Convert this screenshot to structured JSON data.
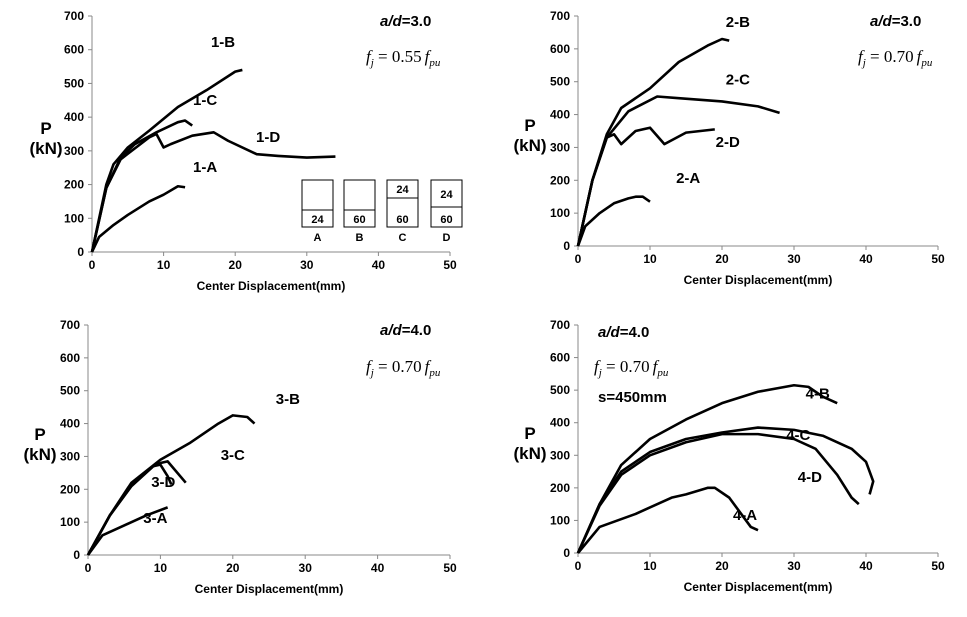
{
  "chart_data": [
    {
      "type": "line",
      "xlabel": "Center Displacement(mm)",
      "ylabel": [
        "P",
        "(kN)"
      ],
      "xlim": [
        0,
        50
      ],
      "ylim": [
        0,
        700
      ],
      "xticks": [
        0,
        10,
        20,
        30,
        40,
        50
      ],
      "yticks": [
        0,
        100,
        200,
        300,
        400,
        500,
        600,
        700
      ],
      "ratio": [
        "a/d",
        "=3.0"
      ],
      "formula": [
        "f",
        "j",
        " = 0.55",
        "f",
        "pu"
      ],
      "sections": [
        {
          "label": "A",
          "layers": [
            "24"
          ]
        },
        {
          "label": "B",
          "layers": [
            "60"
          ]
        },
        {
          "label": "C",
          "layers": [
            "24",
            "60"
          ]
        },
        {
          "label": "D",
          "layers": [
            "24",
            "60"
          ]
        }
      ],
      "series": [
        {
          "name": "1-A",
          "color": "#000000",
          "x": [
            0,
            1,
            3,
            5,
            8,
            10,
            12,
            13
          ],
          "values": [
            0,
            45,
            80,
            110,
            150,
            170,
            195,
            192
          ]
        },
        {
          "name": "1-B",
          "color": "#000000",
          "x": [
            0,
            1,
            2,
            3,
            5,
            8,
            12,
            16,
            20,
            21
          ],
          "values": [
            0,
            100,
            200,
            260,
            310,
            360,
            430,
            480,
            535,
            540
          ]
        },
        {
          "name": "1-C",
          "color": "#000000",
          "x": [
            0,
            2,
            4,
            6,
            9,
            12,
            13,
            14
          ],
          "values": [
            0,
            190,
            280,
            320,
            355,
            385,
            390,
            375
          ]
        },
        {
          "name": "1-D",
          "color": "#000000",
          "x": [
            0,
            2,
            4,
            8,
            9,
            10,
            11,
            14,
            17,
            19,
            23,
            26,
            30,
            34
          ],
          "values": [
            0,
            190,
            275,
            340,
            350,
            310,
            320,
            345,
            355,
            330,
            290,
            285,
            280,
            283
          ]
        }
      ]
    },
    {
      "type": "line",
      "xlabel": "Center Displacement(mm)",
      "ylabel": [
        "P",
        "(kN)"
      ],
      "xlim": [
        0,
        50
      ],
      "ylim": [
        0,
        700
      ],
      "xticks": [
        0,
        10,
        20,
        30,
        40,
        50
      ],
      "yticks": [
        0,
        100,
        200,
        300,
        400,
        500,
        600,
        700
      ],
      "ratio": [
        "a/d",
        "=3.0"
      ],
      "formula": [
        "f",
        "j",
        " = 0.70",
        "f",
        "pu"
      ],
      "series": [
        {
          "name": "2-A",
          "color": "#000000",
          "x": [
            0,
            1,
            3,
            5,
            7,
            8,
            9,
            10
          ],
          "values": [
            0,
            60,
            100,
            130,
            145,
            150,
            150,
            135
          ]
        },
        {
          "name": "2-B",
          "color": "#000000",
          "x": [
            0,
            2,
            4,
            6,
            10,
            14,
            18,
            20,
            21
          ],
          "values": [
            0,
            200,
            340,
            420,
            480,
            560,
            610,
            630,
            625
          ]
        },
        {
          "name": "2-C",
          "color": "#000000",
          "x": [
            0,
            2,
            4,
            7,
            11,
            14,
            20,
            25,
            28
          ],
          "values": [
            0,
            200,
            330,
            410,
            455,
            450,
            440,
            425,
            405
          ]
        },
        {
          "name": "2-D",
          "color": "#000000",
          "x": [
            0,
            2,
            4,
            5,
            6,
            8,
            10,
            12,
            15,
            19
          ],
          "values": [
            0,
            200,
            330,
            340,
            310,
            350,
            360,
            310,
            345,
            355
          ]
        }
      ]
    },
    {
      "type": "line",
      "xlabel": "Center Displacement(mm)",
      "ylabel": [
        "P",
        "(kN)"
      ],
      "xlim": [
        0,
        50
      ],
      "ylim": [
        0,
        700
      ],
      "xticks": [
        0,
        10,
        20,
        30,
        40,
        50
      ],
      "yticks": [
        0,
        100,
        200,
        300,
        400,
        500,
        600,
        700
      ],
      "ratio": [
        "a/d",
        "=4.0"
      ],
      "formula": [
        "f",
        "j",
        " = 0.70",
        "f",
        "pu"
      ],
      "series": [
        {
          "name": "3-A",
          "color": "#000000",
          "x": [
            0,
            2,
            5,
            8,
            11
          ],
          "values": [
            0,
            60,
            90,
            120,
            145
          ]
        },
        {
          "name": "3-B",
          "color": "#000000",
          "x": [
            0,
            3,
            6,
            10,
            14,
            18,
            20,
            22,
            23
          ],
          "values": [
            0,
            120,
            220,
            290,
            340,
            400,
            425,
            420,
            400
          ]
        },
        {
          "name": "3-C",
          "color": "#000000",
          "x": [
            0,
            3,
            6,
            9,
            10,
            11,
            13.5
          ],
          "values": [
            0,
            120,
            210,
            270,
            280,
            285,
            220
          ]
        },
        {
          "name": "3-D",
          "color": "#000000",
          "x": [
            0,
            3,
            6,
            9,
            10,
            11,
            11.5
          ],
          "values": [
            0,
            120,
            210,
            270,
            275,
            240,
            215
          ]
        }
      ]
    },
    {
      "type": "line",
      "xlabel": "Center Displacement(mm)",
      "ylabel": [
        "P",
        "(kN)"
      ],
      "xlim": [
        0,
        50
      ],
      "ylim": [
        0,
        700
      ],
      "xticks": [
        0,
        10,
        20,
        30,
        40,
        50
      ],
      "yticks": [
        0,
        100,
        200,
        300,
        400,
        500,
        600,
        700
      ],
      "ratio": [
        "a/d",
        "=4.0"
      ],
      "formula": [
        "f",
        "j",
        " = 0.70",
        "f",
        "pu"
      ],
      "spacing": "s=450mm",
      "series": [
        {
          "name": "4-A",
          "color": "#000000",
          "x": [
            0,
            3,
            8,
            13,
            15,
            18,
            19,
            21,
            23,
            24,
            25
          ],
          "values": [
            0,
            80,
            120,
            170,
            180,
            200,
            200,
            170,
            110,
            80,
            70
          ]
        },
        {
          "name": "4-B",
          "color": "#000000",
          "x": [
            0,
            3,
            6,
            10,
            15,
            20,
            25,
            30,
            32,
            34,
            36
          ],
          "values": [
            0,
            150,
            270,
            350,
            410,
            460,
            495,
            515,
            510,
            480,
            460
          ]
        },
        {
          "name": "4-C",
          "color": "#000000",
          "x": [
            0,
            3,
            6,
            10,
            15,
            20,
            25,
            30,
            34,
            38,
            40,
            41,
            40.5
          ],
          "values": [
            0,
            150,
            250,
            310,
            350,
            370,
            385,
            378,
            360,
            320,
            280,
            220,
            180
          ]
        },
        {
          "name": "4-D",
          "color": "#000000",
          "x": [
            0,
            3,
            6,
            10,
            15,
            20,
            25,
            30,
            33,
            36,
            38,
            39
          ],
          "values": [
            0,
            145,
            240,
            300,
            340,
            365,
            365,
            350,
            320,
            240,
            170,
            150
          ]
        }
      ]
    }
  ]
}
